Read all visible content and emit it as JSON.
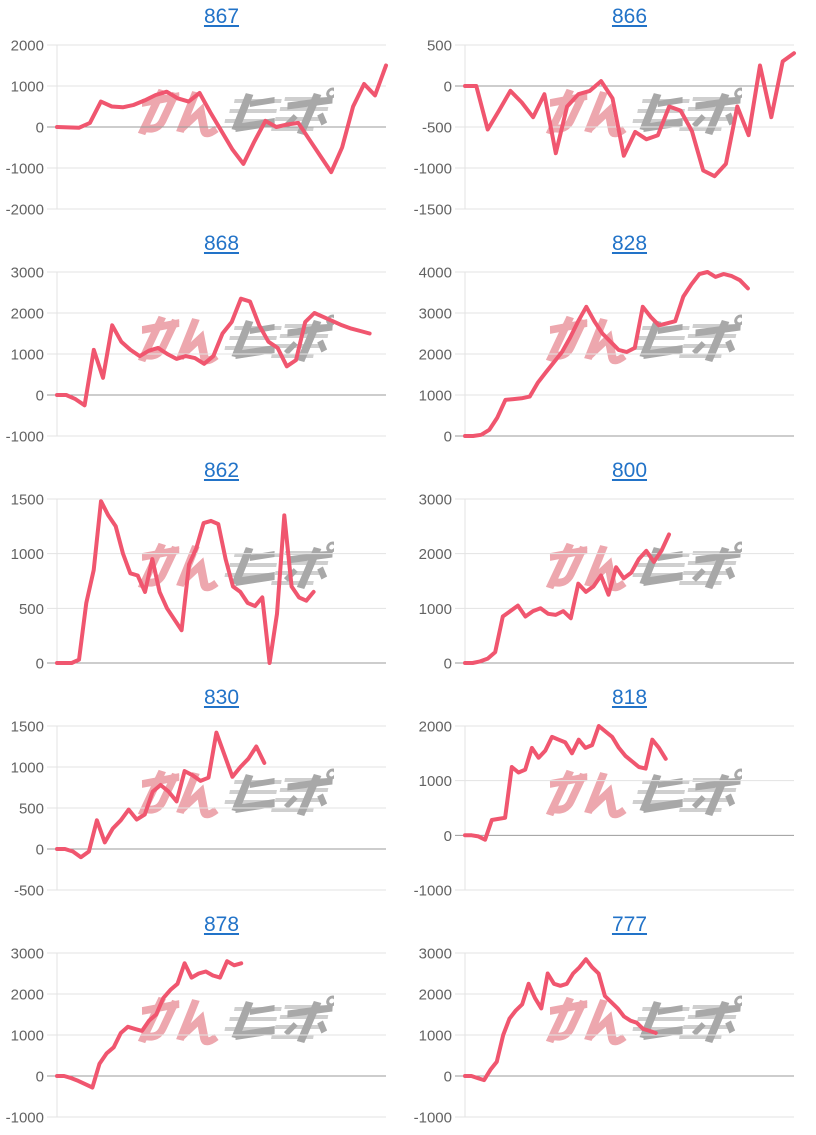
{
  "style": {
    "line_color": "#f0566f",
    "grid_color": "#e3e3e3",
    "zero_line_color": "#9b9b9b",
    "tick_label_color": "#636363",
    "title_link_color": "#2273c8",
    "watermark_pink": "#eda7ae",
    "watermark_gray": "#a8a8a8"
  },
  "watermark": {
    "text": "みんレポ"
  },
  "chart_data": [
    {
      "type": "line",
      "title": "867",
      "xlabel": "",
      "ylabel": "",
      "ylim": [
        -2000,
        2000
      ],
      "yticks": [
        2000,
        1000,
        0,
        -1000,
        -2000
      ],
      "x_span": 1.0,
      "grid": true,
      "legend": false,
      "values": [
        0,
        -10,
        -20,
        100,
        620,
        500,
        480,
        540,
        650,
        780,
        860,
        700,
        620,
        830,
        350,
        -100,
        -550,
        -900,
        -350,
        150,
        0,
        60,
        100,
        -300,
        -700,
        -1100,
        -500,
        500,
        1050,
        770,
        1500
      ]
    },
    {
      "type": "line",
      "title": "866",
      "xlabel": "",
      "ylabel": "",
      "ylim": [
        -1500,
        500
      ],
      "yticks": [
        500,
        0,
        -500,
        -1000,
        -1500
      ],
      "x_span": 1.0,
      "grid": true,
      "legend": false,
      "values": [
        0,
        0,
        -530,
        -300,
        -60,
        -200,
        -380,
        -100,
        -820,
        -250,
        -100,
        -60,
        60,
        -150,
        -850,
        -560,
        -650,
        -600,
        -250,
        -300,
        -550,
        -1030,
        -1100,
        -950,
        -250,
        -600,
        250,
        -380,
        300,
        400
      ]
    },
    {
      "type": "line",
      "title": "868",
      "xlabel": "",
      "ylabel": "",
      "ylim": [
        -1000,
        3000
      ],
      "yticks": [
        3000,
        2000,
        1000,
        0,
        -1000
      ],
      "x_span": 0.95,
      "grid": true,
      "legend": false,
      "values": [
        0,
        0,
        -100,
        -250,
        1100,
        420,
        1700,
        1300,
        1100,
        950,
        1080,
        1150,
        1000,
        880,
        950,
        900,
        760,
        950,
        1500,
        1780,
        2350,
        2280,
        1700,
        1300,
        1150,
        700,
        850,
        1780,
        2000,
        1900,
        1800,
        1700,
        1620,
        1560,
        1500
      ]
    },
    {
      "type": "line",
      "title": "828",
      "xlabel": "",
      "ylabel": "",
      "ylim": [
        0,
        4000
      ],
      "yticks": [
        4000,
        3000,
        2000,
        1000,
        0
      ],
      "x_span": 0.86,
      "grid": true,
      "legend": false,
      "values": [
        0,
        0,
        30,
        150,
        450,
        880,
        900,
        920,
        960,
        1300,
        1550,
        1800,
        2050,
        2400,
        2800,
        3150,
        2800,
        2500,
        2300,
        2100,
        2050,
        2150,
        3150,
        2900,
        2700,
        2750,
        2800,
        3400,
        3700,
        3950,
        4000,
        3880,
        3950,
        3900,
        3800,
        3600
      ]
    },
    {
      "type": "line",
      "title": "862",
      "xlabel": "",
      "ylabel": "",
      "ylim": [
        0,
        1500
      ],
      "yticks": [
        1500,
        1000,
        500,
        0
      ],
      "x_span": 0.78,
      "grid": true,
      "legend": false,
      "values": [
        0,
        0,
        0,
        30,
        550,
        850,
        1480,
        1350,
        1250,
        1000,
        820,
        800,
        650,
        950,
        650,
        500,
        400,
        300,
        900,
        1050,
        1280,
        1300,
        1270,
        950,
        700,
        650,
        550,
        520,
        600,
        0,
        450,
        1350,
        700,
        600,
        570,
        650
      ]
    },
    {
      "type": "line",
      "title": "800",
      "xlabel": "",
      "ylabel": "",
      "ylim": [
        0,
        3000
      ],
      "yticks": [
        3000,
        2000,
        1000,
        0
      ],
      "x_span": 0.62,
      "grid": true,
      "legend": false,
      "values": [
        0,
        0,
        30,
        80,
        200,
        850,
        950,
        1050,
        850,
        950,
        1000,
        900,
        880,
        950,
        820,
        1450,
        1300,
        1400,
        1600,
        1250,
        1750,
        1550,
        1650,
        1900,
        2050,
        1850,
        2050,
        2350
      ]
    },
    {
      "type": "line",
      "title": "830",
      "xlabel": "",
      "ylabel": "",
      "ylim": [
        -500,
        1500
      ],
      "yticks": [
        1500,
        1000,
        500,
        0,
        -500
      ],
      "x_span": 0.63,
      "grid": true,
      "legend": false,
      "values": [
        0,
        0,
        -30,
        -100,
        -30,
        350,
        80,
        250,
        350,
        480,
        360,
        420,
        700,
        780,
        700,
        580,
        950,
        900,
        830,
        870,
        1420,
        1150,
        880,
        1000,
        1100,
        1250,
        1050
      ]
    },
    {
      "type": "line",
      "title": "818",
      "xlabel": "",
      "ylabel": "",
      "ylim": [
        -1000,
        2000
      ],
      "yticks": [
        2000,
        1000,
        0,
        -1000
      ],
      "x_span": 0.61,
      "grid": true,
      "legend": false,
      "values": [
        0,
        0,
        -20,
        -80,
        280,
        300,
        320,
        1250,
        1150,
        1200,
        1600,
        1420,
        1550,
        1800,
        1750,
        1700,
        1500,
        1750,
        1600,
        1650,
        2000,
        1900,
        1800,
        1600,
        1450,
        1350,
        1250,
        1220,
        1750,
        1600,
        1400
      ]
    },
    {
      "type": "line",
      "title": "878",
      "xlabel": "",
      "ylabel": "",
      "ylim": [
        -1000,
        3000
      ],
      "yticks": [
        3000,
        2000,
        1000,
        0,
        -1000
      ],
      "x_span": 0.56,
      "grid": true,
      "legend": false,
      "values": [
        0,
        0,
        -50,
        -120,
        -200,
        -280,
        300,
        550,
        700,
        1050,
        1200,
        1150,
        1100,
        1350,
        1500,
        1900,
        2100,
        2250,
        2750,
        2400,
        2500,
        2550,
        2450,
        2400,
        2800,
        2700,
        2750
      ]
    },
    {
      "type": "line",
      "title": "777",
      "xlabel": "",
      "ylabel": "",
      "ylim": [
        -1000,
        3000
      ],
      "yticks": [
        3000,
        2000,
        1000,
        0,
        -1000
      ],
      "x_span": 0.58,
      "grid": true,
      "legend": false,
      "values": [
        0,
        0,
        -50,
        -100,
        150,
        350,
        1000,
        1400,
        1600,
        1750,
        2250,
        1900,
        1650,
        2500,
        2250,
        2200,
        2250,
        2500,
        2650,
        2850,
        2650,
        2500,
        1950,
        1800,
        1650,
        1450,
        1350,
        1300,
        1150,
        1100,
        1050
      ]
    }
  ]
}
